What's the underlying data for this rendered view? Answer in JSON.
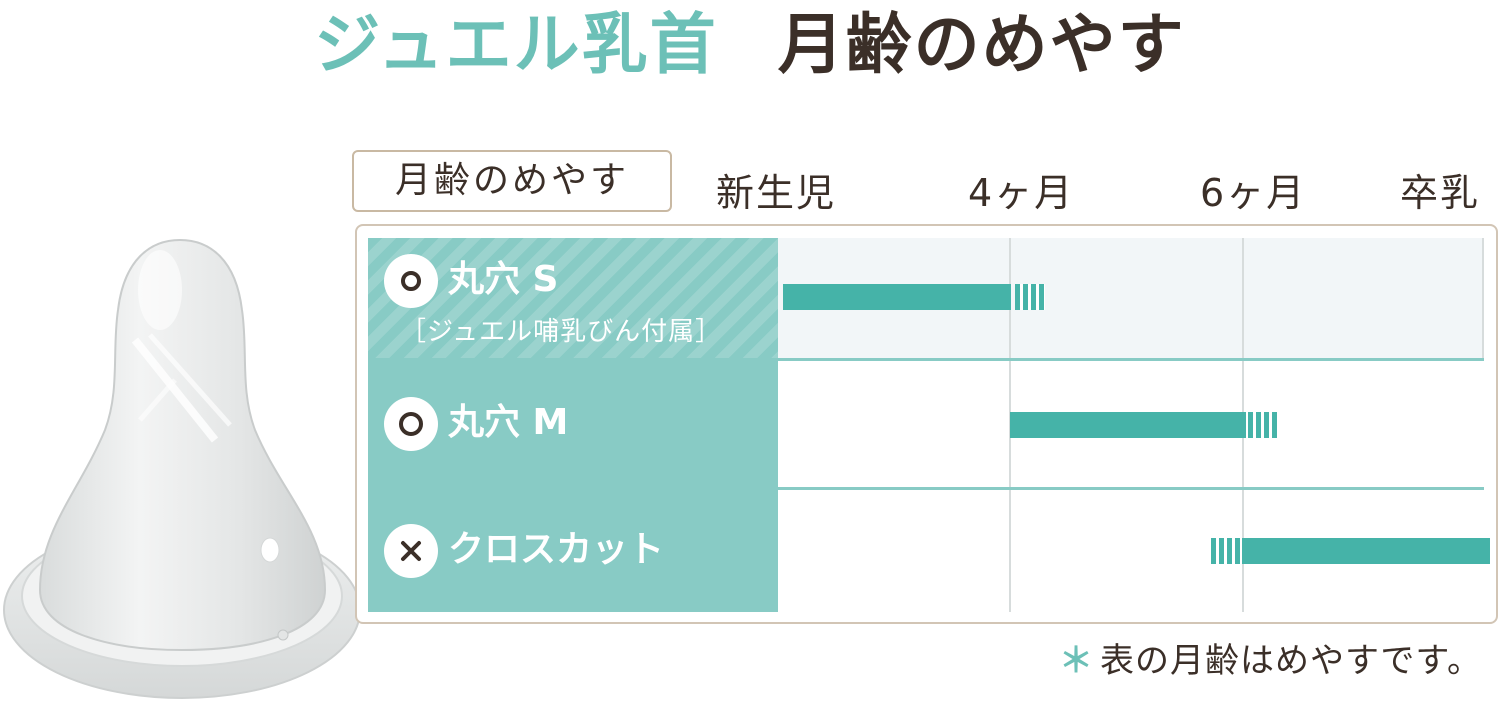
{
  "title": {
    "part1": "ジュエル乳首",
    "part2": "月齢のめやす"
  },
  "age_guide_label": "月齢のめやす",
  "timeline": {
    "labels": [
      "新生児",
      "4ヶ月",
      "6ヶ月",
      "卒乳"
    ]
  },
  "rows": [
    {
      "symbol": "○",
      "name": "丸穴 S",
      "sub": "［ジュエル哺乳びん付属］",
      "start": "新生児",
      "end": "4ヶ月"
    },
    {
      "symbol": "○",
      "name": "丸穴 M",
      "sub": "",
      "start": "4ヶ月",
      "end": "6ヶ月"
    },
    {
      "symbol": "×",
      "name": "クロスカット",
      "sub": "",
      "start": "6ヶ月",
      "end": "卒乳"
    }
  ],
  "note": {
    "asterisk": "＊",
    "text": "表の月齢はめやすです。"
  },
  "colors": {
    "accent": "#6cc0b7",
    "label_bg": "#88cbc5",
    "bar": "#45b3a8",
    "text": "#3b2f28",
    "frame": "#d2c5b5"
  }
}
